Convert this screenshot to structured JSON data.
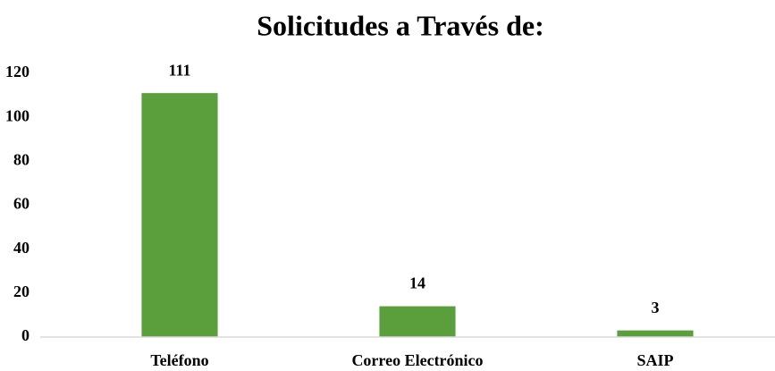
{
  "chart_data": {
    "type": "bar",
    "title": "Solicitudes a Través de:",
    "categories": [
      "Teléfono",
      "Correo Electrónico",
      "SAIP"
    ],
    "values": [
      111,
      14,
      3
    ],
    "color": "#5b9f3d",
    "ylim": [
      0,
      120
    ],
    "yticks": [
      0,
      20,
      40,
      60,
      80,
      100,
      120
    ],
    "grid": false,
    "data_labels": true
  }
}
